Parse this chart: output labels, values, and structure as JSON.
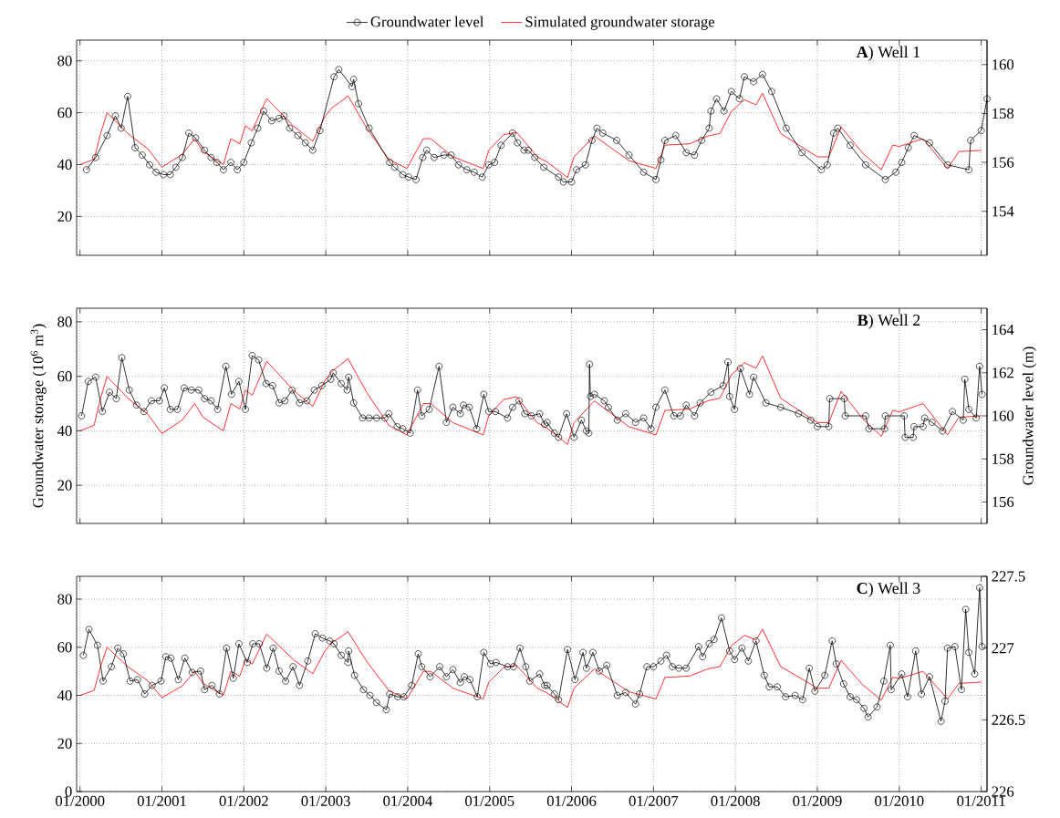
{
  "chart_data": [
    {
      "type": "line",
      "title": "**A**) Well 1",
      "xlim": [
        "1999-12-17",
        "2011-01-27"
      ],
      "xticks": [
        {
          "value": "2000-01",
          "label": null
        },
        {
          "value": "2001-01",
          "label": null
        },
        {
          "value": "2002-01",
          "label": null
        },
        {
          "value": "2003-01",
          "label": null
        },
        {
          "value": "2004-01",
          "label": null
        },
        {
          "value": "2005-01",
          "label": null
        },
        {
          "value": "2006-01",
          "label": null
        },
        {
          "value": "2007-01",
          "label": null
        },
        {
          "value": "2008-01",
          "label": null
        },
        {
          "value": "2009-01",
          "label": null
        },
        {
          "value": "2010-01",
          "label": null
        },
        {
          "value": "2011-01",
          "label": null
        }
      ],
      "ylim": [
        5,
        88
      ],
      "yticks": [
        20,
        40,
        60,
        80
      ],
      "y2lim": [
        152.2,
        161
      ],
      "y2ticks": [
        154,
        156,
        158,
        160
      ],
      "grid": true,
      "legend": "top",
      "tick_labels": "y",
      "series": [
        {
          "name": "Groundwater level",
          "color": "#000000",
          "axis": "y2",
          "marker": "circle",
          "x": [
            "2000-01-30",
            "2000-03-11",
            "2000-05-01",
            "2000-06-07",
            "2000-07-03",
            "2000-08-01",
            "2000-09-03",
            "2000-10-05",
            "2000-11-07",
            "2000-12-06",
            "2001-01-08",
            "2001-02-07",
            "2001-03-04",
            "2001-04-02",
            "2001-05-01",
            "2001-05-31",
            "2001-07-10",
            "2001-08-08",
            "2001-09-03",
            "2001-10-02",
            "2001-11-04",
            "2001-12-03",
            "2002-01-01",
            "2002-02-03",
            "2002-03-04",
            "2002-03-30",
            "2002-05-05",
            "2002-06-07",
            "2002-06-29",
            "2002-07-24",
            "2002-08-30",
            "2002-10-02",
            "2002-11-04",
            "2002-12-06",
            "2003-02-07",
            "2003-02-28",
            "2003-04-28",
            "2003-05-05",
            "2003-05-27",
            "2003-07-13",
            "2003-10-13",
            "2003-11-04",
            "2003-12-10",
            "2004-01-05",
            "2004-02-07",
            "2004-03-08",
            "2004-03-26",
            "2004-04-28",
            "2004-06-11",
            "2004-07-13",
            "2004-08-15",
            "2004-09-21",
            "2004-10-24",
            "2004-11-29",
            "2004-12-28",
            "2005-01-23",
            "2005-02-21",
            "2005-04-13",
            "2005-05-05",
            "2005-06-03",
            "2005-06-22",
            "2005-07-21",
            "2005-08-30",
            "2005-11-04",
            "2005-11-26",
            "2006-01-01",
            "2006-01-23",
            "2006-03-04",
            "2006-04-02",
            "2006-04-24",
            "2006-05-20",
            "2006-07-21",
            "2006-09-14",
            "2006-11-18",
            "2007-01-12",
            "2007-02-03",
            "2007-02-21",
            "2007-04-10",
            "2007-05-27",
            "2007-07-03",
            "2007-08-04",
            "2007-09-06",
            "2007-09-14",
            "2007-10-09",
            "2007-11-11",
            "2007-12-14",
            "2008-01-19",
            "2008-02-10",
            "2008-03-22",
            "2008-05-01",
            "2008-06-11",
            "2008-08-15",
            "2008-10-24",
            "2009-01-19",
            "2009-02-14",
            "2009-03-15",
            "2009-04-02",
            "2009-05-27",
            "2009-08-04",
            "2009-10-31",
            "2009-12-17",
            "2010-01-12",
            "2010-02-10",
            "2010-03-08",
            "2010-05-16",
            "2010-08-04",
            "2010-11-07",
            "2010-11-15",
            "2011-01-01",
            "2011-01-27"
          ],
          "values": [
            155.7,
            156.2,
            157.1,
            157.9,
            157.4,
            158.7,
            156.6,
            156.3,
            155.9,
            155.6,
            155.5,
            155.5,
            155.8,
            156.2,
            157.2,
            157.0,
            156.5,
            156.2,
            156.0,
            155.7,
            156.0,
            155.7,
            156.0,
            156.8,
            157.4,
            158.1,
            157.7,
            157.8,
            157.9,
            157.4,
            157.1,
            156.8,
            156.5,
            157.3,
            159.5,
            159.8,
            159.1,
            159.4,
            158.4,
            157.4,
            156.0,
            155.8,
            155.5,
            155.4,
            155.3,
            156.2,
            156.5,
            156.2,
            156.3,
            156.3,
            155.9,
            155.7,
            155.6,
            155.4,
            155.9,
            156.0,
            156.7,
            157.2,
            156.8,
            156.5,
            156.5,
            156.2,
            155.8,
            155.4,
            155.2,
            155.2,
            155.7,
            155.9,
            156.9,
            157.4,
            157.2,
            156.9,
            156.3,
            155.6,
            155.3,
            156.1,
            156.9,
            157.1,
            156.4,
            156.3,
            156.9,
            157.4,
            158.1,
            158.6,
            158.1,
            158.9,
            158.6,
            159.5,
            159.3,
            159.6,
            158.9,
            157.4,
            156.4,
            155.7,
            155.9,
            157.2,
            157.4,
            156.7,
            155.9,
            155.3,
            155.6,
            156.0,
            156.6,
            157.1,
            156.8,
            155.9,
            155.7,
            156.9,
            157.3,
            158.6
          ]
        },
        {
          "name": "Simulated groundwater storage",
          "color": "#ff0000",
          "axis": "y",
          "x": [
            "2000-01-01",
            "2000-03-04",
            "2000-04-02",
            "2000-05-01",
            "2000-08-01",
            "2000-10-31",
            "2001-01-01",
            "2001-04-02",
            "2001-05-27",
            "2001-07-03",
            "2001-10-02",
            "2001-11-04",
            "2001-12-14",
            "2002-01-08",
            "2002-02-07",
            "2002-04-13",
            "2002-06-14",
            "2002-08-08",
            "2002-11-04",
            "2002-12-28",
            "2003-01-30",
            "2003-03-04",
            "2003-04-10",
            "2003-07-03",
            "2003-10-09",
            "2003-12-28",
            "2004-03-11",
            "2004-04-13",
            "2004-07-21",
            "2004-12-03",
            "2004-12-28",
            "2005-03-04",
            "2005-05-01",
            "2005-08-01",
            "2005-09-14",
            "2005-12-14",
            "2006-01-12",
            "2006-04-13",
            "2006-09-14",
            "2007-01-12",
            "2007-02-21",
            "2007-06-11",
            "2007-08-30",
            "2007-10-24",
            "2007-12-14",
            "2008-02-10",
            "2008-04-02",
            "2008-05-01",
            "2008-07-21",
            "2009-01-01",
            "2009-02-21",
            "2009-04-17",
            "2009-07-21",
            "2009-10-13",
            "2009-12-03",
            "2010-01-01",
            "2010-04-17",
            "2010-08-04",
            "2010-09-24",
            "2011-01-01"
          ],
          "values": [
            40,
            42,
            52,
            60,
            52,
            46,
            39,
            44,
            50,
            45,
            40,
            50,
            48,
            55,
            53,
            65.5,
            60,
            55,
            49,
            58.5,
            62,
            64,
            66.5,
            54,
            42,
            38.5,
            50,
            50,
            43,
            38.5,
            45.5,
            51.5,
            52.5,
            43,
            41,
            35,
            43,
            51,
            41.5,
            38.5,
            47.5,
            48,
            51,
            52,
            60.5,
            65,
            63,
            67.5,
            52,
            43,
            43,
            54.5,
            44.5,
            38,
            47.5,
            47,
            50,
            38.5,
            45,
            45.5
          ]
        }
      ]
    },
    {
      "type": "line",
      "title": "**B**) Well 2",
      "ylabel": "Groundwater storage (10$^{6}$ m$^{3}$)",
      "y2label": "Groundwater level (m)",
      "xlim": [
        "1999-12-17",
        "2011-01-27"
      ],
      "xticks": [
        {
          "value": "2000-01",
          "label": null
        },
        {
          "value": "2001-01",
          "label": null
        },
        {
          "value": "2002-01",
          "label": null
        },
        {
          "value": "2003-01",
          "label": null
        },
        {
          "value": "2004-01",
          "label": null
        },
        {
          "value": "2005-01",
          "label": null
        },
        {
          "value": "2006-01",
          "label": null
        },
        {
          "value": "2007-01",
          "label": null
        },
        {
          "value": "2008-01",
          "label": null
        },
        {
          "value": "2009-01",
          "label": null
        },
        {
          "value": "2010-01",
          "label": null
        },
        {
          "value": "2011-01",
          "label": null
        }
      ],
      "ylim": [
        6,
        85
      ],
      "yticks": [
        20,
        40,
        60,
        80
      ],
      "y2lim": [
        155,
        165
      ],
      "y2ticks": [
        156,
        158,
        160,
        162,
        164
      ],
      "grid": true,
      "tick_labels": "y",
      "series": [
        {
          "color": "#000000",
          "axis": "y2",
          "marker": "circle",
          "x": [
            "2000-01-08",
            "2000-02-07",
            "2000-03-11",
            "2000-04-10",
            "2000-05-12",
            "2000-06-11",
            "2000-07-06",
            "2000-08-08",
            "2000-09-10",
            "2000-10-13",
            "2000-11-15",
            "2000-12-21",
            "2001-01-12",
            "2001-02-07",
            "2001-03-11",
            "2001-04-10",
            "2001-05-12",
            "2001-06-14",
            "2001-07-10",
            "2001-08-08",
            "2001-09-06",
            "2001-10-13",
            "2001-11-07",
            "2001-12-10",
            "2002-01-08",
            "2002-02-07",
            "2002-03-08",
            "2002-04-10",
            "2002-05-09",
            "2002-06-07",
            "2002-07-03",
            "2002-08-04",
            "2002-09-06",
            "2002-10-09",
            "2002-11-11",
            "2002-12-14",
            "2003-01-23",
            "2003-02-03",
            "2003-03-11",
            "2003-04-06",
            "2003-04-13",
            "2003-05-05",
            "2003-06-14",
            "2003-07-13",
            "2003-08-15",
            "2003-09-21",
            "2003-10-09",
            "2003-11-15",
            "2003-12-10",
            "2004-01-12",
            "2004-02-14",
            "2004-03-04",
            "2004-04-06",
            "2004-05-20",
            "2004-06-22",
            "2004-07-21",
            "2004-08-23",
            "2004-09-06",
            "2004-10-02",
            "2004-11-04",
            "2004-12-06",
            "2004-12-28",
            "2005-01-27",
            "2005-03-22",
            "2005-04-13",
            "2005-05-12",
            "2005-06-07",
            "2005-07-06",
            "2005-08-12",
            "2005-09-03",
            "2005-09-14",
            "2005-10-16",
            "2005-11-04",
            "2005-12-10",
            "2006-01-12",
            "2006-02-14",
            "2006-03-08",
            "2006-03-19",
            "2006-03-22",
            "2006-03-26",
            "2006-04-13",
            "2006-05-27",
            "2006-06-14",
            "2006-07-24",
            "2006-08-30",
            "2006-10-13",
            "2006-11-18",
            "2006-12-21",
            "2007-01-12",
            "2007-02-21",
            "2007-04-02",
            "2007-05-01",
            "2007-05-27",
            "2007-07-03",
            "2007-07-28",
            "2007-09-14",
            "2007-11-07",
            "2007-11-29",
            "2007-12-06",
            "2007-12-28",
            "2008-01-23",
            "2008-03-04",
            "2008-03-22",
            "2008-05-16",
            "2008-07-21",
            "2008-10-09",
            "2008-12-03",
            "2009-01-01",
            "2009-02-21",
            "2009-02-25",
            "2009-05-01",
            "2009-05-05",
            "2009-08-04",
            "2009-08-19",
            "2009-10-27",
            "2009-10-31",
            "2010-01-23",
            "2010-01-27",
            "2010-03-04",
            "2010-03-08",
            "2010-04-17",
            "2010-04-24",
            "2010-05-27",
            "2010-07-13",
            "2010-08-26",
            "2010-10-13",
            "2010-10-20",
            "2010-11-07",
            "2010-12-10",
            "2010-12-25",
            "2011-01-05"
          ],
          "values": [
            160.0,
            161.6,
            161.8,
            160.2,
            161.1,
            160.8,
            162.7,
            161.2,
            160.5,
            160.2,
            160.7,
            160.7,
            161.3,
            160.3,
            160.3,
            161.3,
            161.2,
            161.2,
            160.8,
            160.7,
            160.3,
            162.3,
            161.0,
            161.6,
            160.3,
            162.8,
            162.6,
            161.5,
            161.4,
            160.6,
            160.7,
            161.2,
            160.6,
            160.7,
            161.2,
            161.4,
            161.7,
            162.0,
            161.5,
            161.2,
            161.8,
            160.6,
            159.9,
            159.9,
            159.9,
            159.9,
            160.1,
            159.5,
            159.4,
            159.2,
            161.2,
            160.0,
            160.3,
            162.3,
            159.7,
            160.4,
            160.1,
            160.5,
            160.4,
            159.4,
            161.0,
            160.2,
            160.2,
            159.9,
            160.4,
            160.7,
            160.1,
            160.0,
            160.1,
            159.6,
            159.7,
            159.2,
            159.0,
            160.1,
            159.0,
            159.8,
            159.3,
            159.2,
            162.4,
            160.9,
            161.0,
            160.7,
            160.4,
            159.8,
            160.1,
            159.7,
            159.9,
            159.4,
            160.4,
            161.2,
            160.0,
            160.0,
            160.5,
            160.0,
            160.6,
            161.1,
            161.4,
            162.5,
            160.9,
            160.3,
            162.2,
            161.0,
            161.8,
            160.6,
            160.4,
            160.1,
            159.8,
            159.5,
            159.5,
            160.8,
            160.8,
            160.0,
            160.0,
            159.4,
            159.4,
            160.0,
            160.0,
            159.0,
            159.0,
            159.5,
            159.5,
            159.9,
            159.7,
            159.3,
            160.2,
            159.8,
            161.7,
            160.3,
            159.9,
            162.3,
            161.0
          ]
        },
        {
          "color": "#ff0000",
          "axis": "y",
          "x": [
            "2000-01-01",
            "2000-03-04",
            "2000-04-02",
            "2000-05-01",
            "2000-08-01",
            "2000-10-31",
            "2001-01-01",
            "2001-04-02",
            "2001-05-27",
            "2001-07-03",
            "2001-10-02",
            "2001-11-04",
            "2001-12-14",
            "2002-01-08",
            "2002-02-07",
            "2002-04-13",
            "2002-06-14",
            "2002-08-08",
            "2002-11-04",
            "2002-12-28",
            "2003-01-30",
            "2003-03-04",
            "2003-04-10",
            "2003-07-03",
            "2003-10-09",
            "2003-12-28",
            "2004-03-11",
            "2004-04-13",
            "2004-07-21",
            "2004-12-03",
            "2004-12-28",
            "2005-03-04",
            "2005-05-01",
            "2005-08-01",
            "2005-09-14",
            "2005-12-14",
            "2006-01-12",
            "2006-04-13",
            "2006-09-14",
            "2007-01-12",
            "2007-02-21",
            "2007-06-11",
            "2007-08-30",
            "2007-10-24",
            "2007-12-14",
            "2008-02-10",
            "2008-04-02",
            "2008-05-01",
            "2008-07-21",
            "2009-01-01",
            "2009-02-21",
            "2009-04-17",
            "2009-07-21",
            "2009-10-13",
            "2009-12-03",
            "2010-01-01",
            "2010-04-17",
            "2010-08-04",
            "2010-09-24",
            "2011-01-01"
          ],
          "values": [
            40,
            42,
            52,
            60,
            52,
            46,
            39,
            44,
            50,
            45,
            40,
            50,
            48,
            55,
            53,
            65.5,
            60,
            55,
            49,
            58.5,
            62,
            64,
            66.5,
            54,
            42,
            38.5,
            50,
            50,
            43,
            38.5,
            45.5,
            51.5,
            52.5,
            43,
            41,
            35,
            43,
            51,
            41.5,
            38.5,
            47.5,
            48,
            51,
            52,
            60.5,
            65,
            63,
            67.5,
            52,
            43,
            43,
            54.5,
            44.5,
            38,
            47.5,
            47,
            50,
            38.5,
            45,
            45.5
          ]
        }
      ]
    },
    {
      "type": "line",
      "title": "**C**) Well 3",
      "xlim": [
        "1999-12-17",
        "2011-01-27"
      ],
      "xticks": [
        {
          "value": "2000-01",
          "label": "01/2000"
        },
        {
          "value": "2001-01",
          "label": "01/2001"
        },
        {
          "value": "2002-01",
          "label": "01/2002"
        },
        {
          "value": "2003-01",
          "label": "01/2003"
        },
        {
          "value": "2004-01",
          "label": "01/2004"
        },
        {
          "value": "2005-01",
          "label": "01/2005"
        },
        {
          "value": "2006-01",
          "label": "01/2006"
        },
        {
          "value": "2007-01",
          "label": "01/2007"
        },
        {
          "value": "2008-01",
          "label": "01/2008"
        },
        {
          "value": "2009-01",
          "label": "01/2009"
        },
        {
          "value": "2010-01",
          "label": "01/2010"
        },
        {
          "value": "2011-01",
          "label": "01/2011"
        }
      ],
      "ylim": [
        0,
        89.5
      ],
      "yticks": [
        0,
        20,
        40,
        60,
        80
      ],
      "y2lim": [
        226,
        227.5
      ],
      "y2ticks": [
        226,
        226.5,
        227,
        227.5
      ],
      "grid": true,
      "series": [
        {
          "color": "#000000",
          "axis": "y2",
          "marker": "circle",
          "x": [
            "2000-01-16",
            "2000-02-10",
            "2000-03-19",
            "2000-04-13",
            "2000-05-20",
            "2000-06-18",
            "2000-07-13",
            "2000-08-12",
            "2000-09-14",
            "2000-10-16",
            "2000-11-18",
            "2000-12-28",
            "2001-01-19",
            "2001-02-10",
            "2001-03-15",
            "2001-04-13",
            "2001-05-16",
            "2001-06-22",
            "2001-07-10",
            "2001-08-12",
            "2001-09-14",
            "2001-10-16",
            "2001-11-15",
            "2001-12-10",
            "2002-01-16",
            "2002-02-10",
            "2002-03-11",
            "2002-04-13",
            "2002-05-12",
            "2002-06-07",
            "2002-07-06",
            "2002-08-08",
            "2002-09-06",
            "2002-10-13",
            "2002-11-15",
            "2002-12-17",
            "2003-01-19",
            "2003-02-07",
            "2003-03-11",
            "2003-04-10",
            "2003-04-13",
            "2003-05-09",
            "2003-06-18",
            "2003-07-17",
            "2003-08-15",
            "2003-09-28",
            "2003-10-13",
            "2003-11-18",
            "2003-12-14",
            "2004-01-19",
            "2004-02-17",
            "2004-03-04",
            "2004-04-10",
            "2004-05-23",
            "2004-06-22",
            "2004-07-21",
            "2004-08-23",
            "2004-09-10",
            "2004-10-05",
            "2004-11-07",
            "2004-12-06",
            "2005-01-05",
            "2005-01-30",
            "2005-03-22",
            "2005-04-17",
            "2005-05-16",
            "2005-06-11",
            "2005-06-29",
            "2005-08-12",
            "2005-09-03",
            "2005-09-14",
            "2005-10-16",
            "2005-11-04",
            "2005-12-14",
            "2006-01-16",
            "2006-02-21",
            "2006-03-08",
            "2006-04-06",
            "2006-05-05",
            "2006-06-07",
            "2006-07-24",
            "2006-08-30",
            "2006-10-13",
            "2006-10-31",
            "2006-12-03",
            "2007-01-01",
            "2007-02-03",
            "2007-02-28",
            "2007-03-26",
            "2007-04-24",
            "2007-05-27",
            "2007-07-21",
            "2007-08-08",
            "2007-09-06",
            "2007-09-28",
            "2007-10-31",
            "2007-12-06",
            "2007-12-28",
            "2008-01-30",
            "2008-02-28",
            "2008-04-02",
            "2008-05-09",
            "2008-05-31",
            "2008-07-06",
            "2008-08-12",
            "2008-09-24",
            "2008-10-27",
            "2008-11-26",
            "2008-12-21",
            "2009-02-03",
            "2009-03-08",
            "2009-03-26",
            "2009-04-28",
            "2009-05-27",
            "2009-06-25",
            "2009-07-28",
            "2009-08-15",
            "2009-09-24",
            "2009-10-24",
            "2009-11-22",
            "2009-11-26",
            "2010-01-12",
            "2010-02-07",
            "2010-03-15",
            "2010-04-10",
            "2010-05-16",
            "2010-07-06",
            "2010-07-24",
            "2010-08-04",
            "2010-09-06",
            "2010-10-05",
            "2010-10-24",
            "2010-11-07",
            "2010-12-03",
            "2010-12-25",
            "2011-01-05"
          ],
          "values": [
            226.95,
            227.13,
            227.02,
            226.77,
            226.87,
            227.0,
            226.96,
            226.77,
            226.78,
            226.68,
            226.74,
            226.77,
            226.94,
            226.93,
            226.78,
            226.93,
            226.83,
            226.84,
            226.71,
            226.74,
            226.68,
            227.0,
            226.79,
            227.03,
            226.9,
            227.03,
            227.03,
            226.86,
            227.0,
            226.84,
            226.77,
            226.87,
            226.74,
            226.91,
            227.1,
            227.07,
            227.05,
            227.03,
            226.95,
            226.9,
            226.98,
            226.81,
            226.71,
            226.67,
            226.62,
            226.57,
            226.68,
            226.66,
            226.66,
            226.74,
            226.96,
            226.87,
            226.8,
            226.87,
            226.8,
            226.85,
            226.76,
            226.8,
            226.78,
            226.66,
            226.97,
            226.89,
            226.9,
            226.87,
            226.87,
            227.0,
            226.87,
            226.77,
            226.82,
            226.74,
            226.74,
            226.68,
            226.64,
            226.99,
            226.78,
            226.97,
            226.86,
            226.97,
            226.84,
            226.88,
            226.67,
            226.69,
            226.61,
            226.68,
            226.87,
            226.87,
            226.91,
            226.95,
            226.87,
            226.86,
            226.86,
            227.01,
            226.94,
            227.03,
            227.06,
            227.21,
            226.98,
            226.92,
            227.0,
            226.91,
            227.05,
            226.81,
            226.73,
            226.73,
            226.66,
            226.67,
            226.64,
            226.86,
            226.7,
            226.81,
            227.05,
            226.89,
            226.75,
            226.66,
            226.64,
            226.58,
            226.52,
            226.59,
            226.77,
            227.02,
            226.71,
            226.82,
            226.66,
            226.98,
            226.68,
            226.8,
            226.49,
            226.63,
            227.0,
            227.01,
            226.71,
            227.27,
            226.97,
            226.82,
            227.42,
            227.01
          ]
        },
        {
          "color": "#ff0000",
          "axis": "y",
          "x": [
            "2000-01-01",
            "2000-03-04",
            "2000-04-02",
            "2000-05-01",
            "2000-08-01",
            "2000-10-31",
            "2001-01-01",
            "2001-04-02",
            "2001-05-27",
            "2001-07-03",
            "2001-10-02",
            "2001-11-04",
            "2001-12-14",
            "2002-01-08",
            "2002-02-07",
            "2002-04-13",
            "2002-06-14",
            "2002-08-08",
            "2002-11-04",
            "2002-12-28",
            "2003-01-30",
            "2003-03-04",
            "2003-04-10",
            "2003-07-03",
            "2003-10-09",
            "2003-12-28",
            "2004-03-11",
            "2004-04-13",
            "2004-07-21",
            "2004-12-03",
            "2004-12-28",
            "2005-03-04",
            "2005-05-01",
            "2005-08-01",
            "2005-09-14",
            "2005-12-14",
            "2006-01-12",
            "2006-04-13",
            "2006-09-14",
            "2007-01-12",
            "2007-02-21",
            "2007-06-11",
            "2007-08-30",
            "2007-10-24",
            "2007-12-14",
            "2008-02-10",
            "2008-04-02",
            "2008-05-01",
            "2008-07-21",
            "2009-01-01",
            "2009-02-21",
            "2009-04-17",
            "2009-07-21",
            "2009-10-13",
            "2009-12-03",
            "2010-01-01",
            "2010-04-17",
            "2010-08-04",
            "2010-09-24",
            "2011-01-01"
          ],
          "values": [
            40,
            42,
            52,
            60,
            52,
            46,
            39,
            44,
            50,
            45,
            40,
            50,
            48,
            55,
            53,
            65.5,
            60,
            55,
            49,
            58.5,
            62,
            64,
            66.5,
            54,
            42,
            38.5,
            50,
            50,
            43,
            38.5,
            45.5,
            51.5,
            52.5,
            43,
            41,
            35,
            43,
            51,
            41.5,
            38.5,
            47.5,
            48,
            51,
            52,
            60.5,
            65,
            63,
            67.5,
            52,
            43,
            43,
            54.5,
            44.5,
            38,
            47.5,
            47,
            50,
            38.5,
            45,
            45.5
          ]
        }
      ]
    }
  ]
}
